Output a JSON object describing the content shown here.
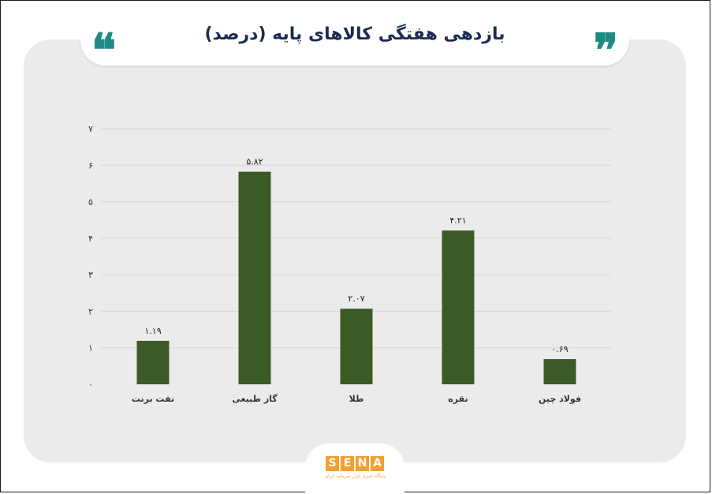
{
  "header": {
    "title": "بازدهی هفتگی کالاهای پایه (درصد)",
    "quote_left": "❝",
    "quote_right": "❞"
  },
  "logo": {
    "letters": [
      "S",
      "E",
      "N",
      "A"
    ],
    "subtitle": "پایگاه خبری بازار سرمایه ایران",
    "color": "#f2a033"
  },
  "colors": {
    "bar": "#3c5a26",
    "grid": "#d6d6d6",
    "title": "#1d2b53",
    "quote": "#1f8a83",
    "card": "#ebebeb"
  },
  "chart_data": {
    "type": "bar",
    "title": "بازدهی هفتگی کالاهای پایه (درصد)",
    "categories": [
      "نفت برنت",
      "گاز طبیعی",
      "طلا",
      "نقره",
      "فولاد چین"
    ],
    "values": [
      1.19,
      5.82,
      2.07,
      4.21,
      0.69
    ],
    "data_labels": [
      "۱.۱۹",
      "۵.۸۲",
      "۲.۰۷",
      "۴.۲۱",
      "۰.۶۹"
    ],
    "yticks": [
      0,
      1,
      2,
      3,
      4,
      5,
      6,
      7
    ],
    "ytick_labels": [
      "۰",
      "۱",
      "۲",
      "۳",
      "۴",
      "۵",
      "۶",
      "۷"
    ],
    "ylim": [
      0,
      7
    ],
    "grid": true,
    "legend": "none"
  }
}
